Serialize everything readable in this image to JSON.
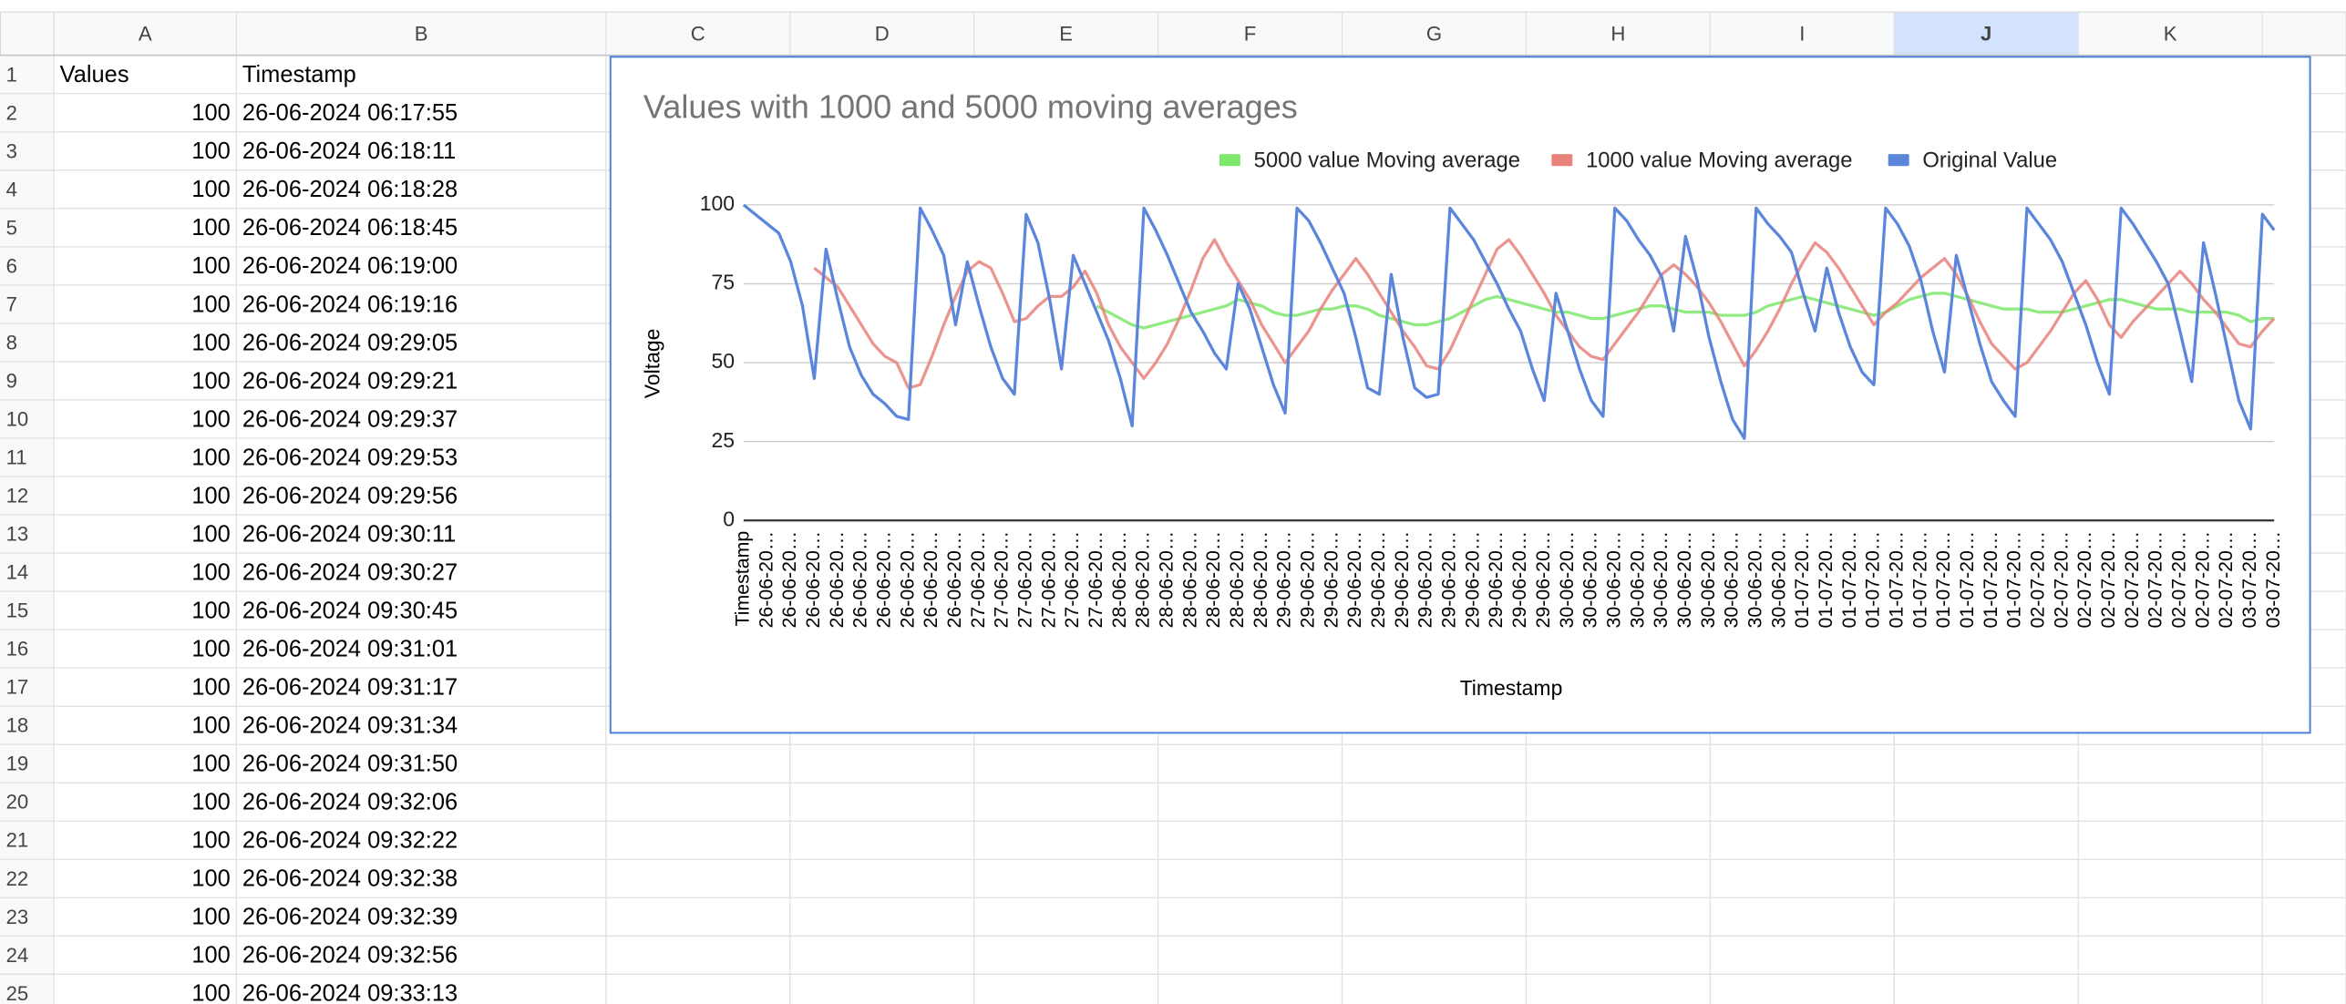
{
  "sheet": {
    "columns": [
      "A",
      "B",
      "C",
      "D",
      "E",
      "F",
      "G",
      "H",
      "I",
      "J",
      "K"
    ],
    "row_numbers": [
      1,
      2,
      3,
      4,
      5,
      6,
      7,
      8,
      9,
      10,
      11,
      12,
      13,
      14,
      15,
      16,
      17,
      18,
      19,
      20,
      21,
      22,
      23,
      24,
      25
    ],
    "cells": [
      [
        "Values",
        "Timestamp"
      ],
      [
        100,
        "26-06-2024 06:17:55"
      ],
      [
        100,
        "26-06-2024 06:18:11"
      ],
      [
        100,
        "26-06-2024 06:18:28"
      ],
      [
        100,
        "26-06-2024 06:18:45"
      ],
      [
        100,
        "26-06-2024 06:19:00"
      ],
      [
        100,
        "26-06-2024 06:19:16"
      ],
      [
        100,
        "26-06-2024 09:29:05"
      ],
      [
        100,
        "26-06-2024 09:29:21"
      ],
      [
        100,
        "26-06-2024 09:29:37"
      ],
      [
        100,
        "26-06-2024 09:29:53"
      ],
      [
        100,
        "26-06-2024 09:29:56"
      ],
      [
        100,
        "26-06-2024 09:30:11"
      ],
      [
        100,
        "26-06-2024 09:30:27"
      ],
      [
        100,
        "26-06-2024 09:30:45"
      ],
      [
        100,
        "26-06-2024 09:31:01"
      ],
      [
        100,
        "26-06-2024 09:31:17"
      ],
      [
        100,
        "26-06-2024 09:31:34"
      ],
      [
        100,
        "26-06-2024 09:31:50"
      ],
      [
        100,
        "26-06-2024 09:32:06"
      ],
      [
        100,
        "26-06-2024 09:32:22"
      ],
      [
        100,
        "26-06-2024 09:32:38"
      ],
      [
        100,
        "26-06-2024 09:32:39"
      ],
      [
        100,
        "26-06-2024 09:32:56"
      ],
      [
        100,
        "26-06-2024 09:33:13"
      ]
    ]
  },
  "chart_data": {
    "type": "line",
    "title": "Values with 1000 and 5000 moving averages",
    "x_label": "Timestamp",
    "y_label": "Voltage",
    "ylim": [
      0,
      100
    ],
    "yticks": [
      0,
      25,
      50,
      75,
      100
    ],
    "grid": true,
    "legend": "top",
    "categories": [
      "Timestamp",
      null,
      "26-06-20…",
      null,
      "26-06-20…",
      null,
      "26-06-20…",
      null,
      "26-06-20…",
      null,
      "26-06-20…",
      null,
      "26-06-20…",
      null,
      "26-06-20…",
      null,
      "26-06-20…",
      null,
      "26-06-20…",
      null,
      "27-06-20…",
      null,
      "27-06-20…",
      null,
      "27-06-20…",
      null,
      "27-06-20…",
      null,
      "27-06-20…",
      null,
      "27-06-20…",
      null,
      "28-06-20…",
      null,
      "28-06-20…",
      null,
      "28-06-20…",
      null,
      "28-06-20…",
      null,
      "28-06-20…",
      null,
      "28-06-20…",
      null,
      "28-06-20…",
      null,
      "29-06-20…",
      null,
      "29-06-20…",
      null,
      "29-06-20…",
      null,
      "29-06-20…",
      null,
      "29-06-20…",
      null,
      "29-06-20…",
      null,
      "29-06-20…",
      null,
      "29-06-20…",
      null,
      "29-06-20…",
      null,
      "29-06-20…",
      null,
      "29-06-20…",
      null,
      "29-06-20…",
      null,
      "30-06-20…",
      null,
      "30-06-20…",
      null,
      "30-06-20…",
      null,
      "30-06-20…",
      null,
      "30-06-20…",
      null,
      "30-06-20…",
      null,
      "30-06-20…",
      null,
      "30-06-20…",
      null,
      "30-06-20…",
      null,
      "30-06-20…",
      null,
      "01-07-20…",
      null,
      "01-07-20…",
      null,
      "01-07-20…",
      null,
      "01-07-20…",
      null,
      "01-07-20…",
      null,
      "01-07-20…",
      null,
      "01-07-20…",
      null,
      "01-07-20…",
      null,
      "01-07-20…",
      null,
      "01-07-20…",
      null,
      "02-07-20…",
      null,
      "02-07-20…",
      null,
      "02-07-20…",
      null,
      "02-07-20…",
      null,
      "02-07-20…",
      null,
      "02-07-20…",
      null,
      "02-07-20…",
      null,
      "02-07-20…",
      null,
      "02-07-20…",
      null,
      "03-07-20…",
      null,
      "03-07-20…"
    ],
    "series": [
      {
        "name": "5000 value Moving average",
        "color": "#7ee86c",
        "values": [
          null,
          null,
          null,
          null,
          null,
          null,
          null,
          null,
          null,
          null,
          null,
          null,
          null,
          null,
          null,
          null,
          null,
          null,
          null,
          null,
          null,
          null,
          null,
          null,
          null,
          null,
          null,
          null,
          null,
          null,
          68,
          66,
          64,
          62,
          61,
          62,
          63,
          64,
          65,
          66,
          67,
          68,
          70,
          69,
          68,
          66,
          65,
          65,
          66,
          67,
          67,
          68,
          68,
          67,
          65,
          64,
          63,
          62,
          62,
          63,
          64,
          66,
          68,
          70,
          71,
          70,
          69,
          68,
          67,
          66,
          66,
          65,
          64,
          64,
          65,
          66,
          67,
          68,
          68,
          67,
          66,
          66,
          66,
          65,
          65,
          65,
          66,
          68,
          69,
          70,
          71,
          70,
          69,
          68,
          67,
          66,
          65,
          66,
          68,
          70,
          71,
          72,
          72,
          71,
          70,
          69,
          68,
          67,
          67,
          67,
          66,
          66,
          66,
          67,
          68,
          69,
          70,
          70,
          69,
          68,
          67,
          67,
          67,
          66,
          66,
          66,
          66,
          65,
          63,
          64,
          64
        ]
      },
      {
        "name": "1000 value Moving average",
        "color": "#e8837c",
        "values": [
          null,
          null,
          null,
          null,
          null,
          null,
          80,
          77,
          74,
          68,
          62,
          56,
          52,
          50,
          42,
          43,
          52,
          62,
          71,
          79,
          82,
          80,
          72,
          63,
          64,
          68,
          71,
          71,
          74,
          79,
          72,
          62,
          55,
          50,
          45,
          50,
          56,
          64,
          73,
          83,
          89,
          82,
          76,
          70,
          62,
          56,
          50,
          55,
          60,
          67,
          73,
          78,
          83,
          78,
          72,
          66,
          60,
          55,
          49,
          48,
          54,
          62,
          70,
          78,
          86,
          89,
          84,
          78,
          72,
          65,
          60,
          55,
          52,
          51,
          56,
          61,
          66,
          72,
          78,
          81,
          78,
          74,
          69,
          63,
          56,
          49,
          54,
          60,
          67,
          75,
          82,
          88,
          85,
          80,
          74,
          68,
          62,
          66,
          69,
          73,
          77,
          80,
          83,
          78,
          71,
          63,
          56,
          52,
          48,
          50,
          55,
          60,
          66,
          72,
          76,
          70,
          62,
          58,
          63,
          67,
          71,
          75,
          79,
          75,
          70,
          66,
          61,
          56,
          55,
          60,
          64
        ]
      },
      {
        "name": "Original Value",
        "color": "#5b86dc",
        "values": [
          100,
          97,
          94,
          91,
          82,
          68,
          45,
          86,
          70,
          55,
          46,
          40,
          37,
          33,
          32,
          99,
          92,
          84,
          62,
          82,
          68,
          55,
          45,
          40,
          97,
          88,
          70,
          48,
          84,
          75,
          66,
          57,
          45,
          30,
          99,
          92,
          84,
          75,
          66,
          60,
          53,
          48,
          75,
          67,
          55,
          43,
          34,
          99,
          95,
          88,
          80,
          72,
          58,
          42,
          40,
          78,
          58,
          42,
          39,
          40,
          99,
          94,
          89,
          82,
          75,
          67,
          60,
          48,
          38,
          72,
          60,
          48,
          38,
          33,
          99,
          95,
          89,
          84,
          77,
          60,
          90,
          76,
          58,
          44,
          32,
          26,
          99,
          94,
          90,
          85,
          72,
          60,
          80,
          66,
          55,
          47,
          43,
          99,
          94,
          87,
          76,
          60,
          47,
          84,
          70,
          56,
          44,
          38,
          33,
          99,
          94,
          89,
          82,
          72,
          62,
          50,
          40,
          99,
          94,
          88,
          82,
          75,
          60,
          44,
          88,
          72,
          55,
          38,
          29,
          97,
          92
        ]
      }
    ]
  }
}
